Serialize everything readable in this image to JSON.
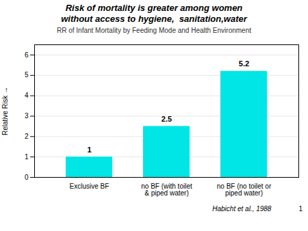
{
  "chart_data": {
    "type": "bar",
    "title": "Risk of mortality is greater among women\nwithout access to hygiene,  sanitation,water",
    "subtitle": "RR of Infant Mortality by Feeding Mode and Health Environment",
    "categories": [
      "Exclusive BF",
      "no BF (with toilet\n& piped water)",
      "no BF (no toilet or\npiped water)"
    ],
    "values": [
      1,
      2.5,
      5.2
    ],
    "color": "#00E5E5",
    "ylabel": "Relative Risk",
    "ylim": [
      0,
      6.5
    ],
    "yticks": [
      0,
      1,
      2,
      3,
      4,
      5,
      6
    ],
    "grid": true,
    "data_labels": true,
    "annotations": [
      "Habicht et al., 1988",
      "1"
    ]
  }
}
